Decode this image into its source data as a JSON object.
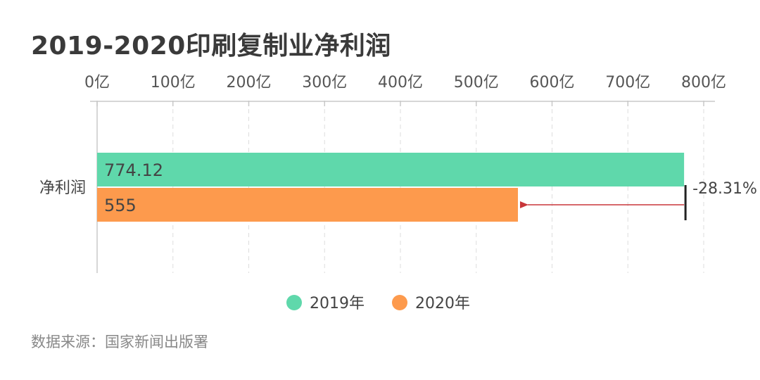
{
  "title": "2019-2020印刷复制业净利润",
  "source": "数据来源：国家新闻出版署",
  "chart_data": {
    "type": "bar",
    "orientation": "horizontal",
    "categories": [
      "净利润"
    ],
    "series": [
      {
        "name": "2019年",
        "values": [
          774.12
        ],
        "labels": [
          "774.12"
        ],
        "color": "#5fd8ab"
      },
      {
        "name": "2020年",
        "values": [
          555
        ],
        "labels": [
          "555"
        ],
        "color": "#fd9a4d"
      }
    ],
    "xlim": [
      0,
      800
    ],
    "ticks": [
      {
        "value": 0,
        "label": "0亿"
      },
      {
        "value": 100,
        "label": "100亿"
      },
      {
        "value": 200,
        "label": "200亿"
      },
      {
        "value": 300,
        "label": "300亿"
      },
      {
        "value": 400,
        "label": "400亿"
      },
      {
        "value": 500,
        "label": "500亿"
      },
      {
        "value": 600,
        "label": "600亿"
      },
      {
        "value": 700,
        "label": "700亿"
      },
      {
        "value": 800,
        "label": "800亿"
      }
    ],
    "axis_position": "top",
    "grid": true,
    "legend_position": "bottom",
    "annotation": {
      "text": "-28.31%",
      "from_value": 774.12,
      "to_value": 555,
      "color": "#c8363a"
    }
  }
}
